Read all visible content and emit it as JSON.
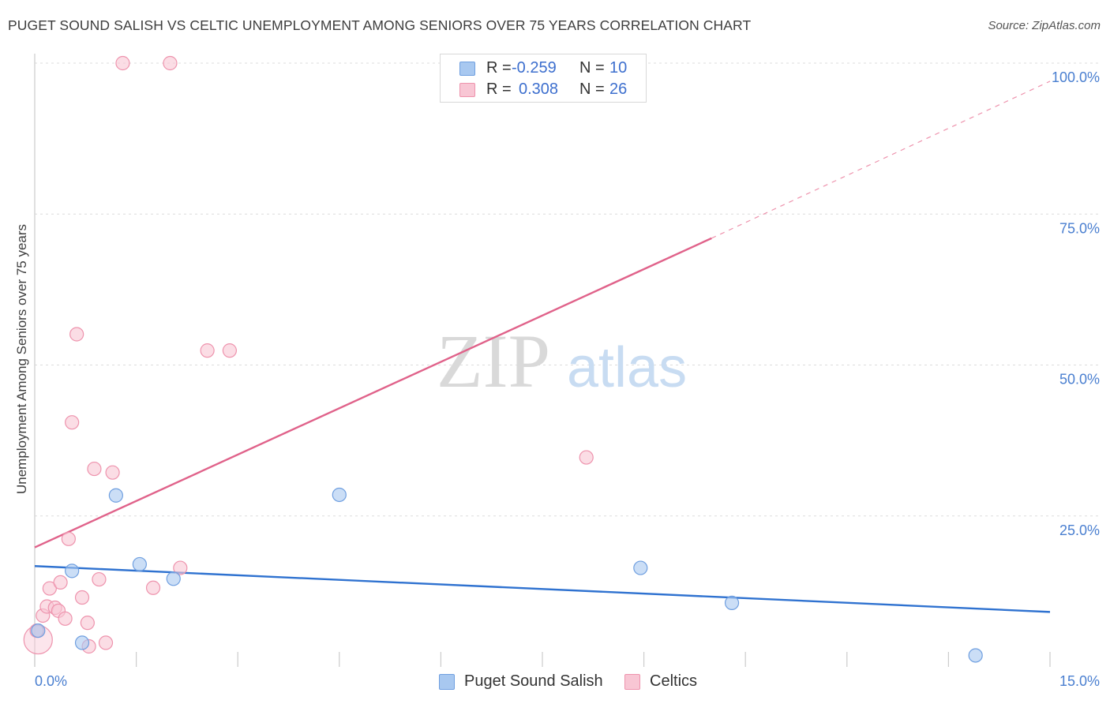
{
  "title": "PUGET SOUND SALISH VS CELTIC UNEMPLOYMENT AMONG SENIORS OVER 75 YEARS CORRELATION CHART",
  "source": "Source: ZipAtlas.com",
  "watermark": {
    "zip": "ZIP",
    "atlas": "atlas"
  },
  "legend": {
    "rows": [
      {
        "r_label": "R =",
        "r_value": "-0.259",
        "n_label": "N =",
        "n_value": "10",
        "color": "#a8c8f0",
        "border": "#6f9fe0"
      },
      {
        "r_label": "R =",
        "r_value": "0.308",
        "n_label": "N =",
        "n_value": "26",
        "color": "#f8c6d4",
        "border": "#ee93ad"
      }
    ]
  },
  "bottom_legend": [
    {
      "label": "Puget Sound Salish",
      "color": "#a8c8f0",
      "border": "#6f9fe0"
    },
    {
      "label": "Celtics",
      "color": "#f8c6d4",
      "border": "#ee93ad"
    }
  ],
  "chart_data": {
    "type": "scatter",
    "title": "PUGET SOUND SALISH VS CELTIC UNEMPLOYMENT AMONG SENIORS OVER 75 YEARS CORRELATION CHART",
    "xlabel": "",
    "ylabel": "Unemployment Among Seniors over 75 years",
    "xlim": [
      0,
      15
    ],
    "ylim": [
      0,
      100
    ],
    "x_tick_labels": {
      "min": "0.0%",
      "max": "15.0%"
    },
    "y_ticks": [
      {
        "value": 25,
        "label": "25.0%"
      },
      {
        "value": 50,
        "label": "50.0%"
      },
      {
        "value": 75,
        "label": "75.0%"
      },
      {
        "value": 100,
        "label": "100.0%"
      }
    ],
    "grid": true,
    "series": [
      {
        "name": "Puget Sound Salish",
        "color": "#a8c8f0",
        "border": "#6f9fe0",
        "line_color": "#2f72d0",
        "points": [
          {
            "x": 0.05,
            "y": 6.0
          },
          {
            "x": 0.55,
            "y": 15.9
          },
          {
            "x": 0.7,
            "y": 4.0
          },
          {
            "x": 1.2,
            "y": 28.4
          },
          {
            "x": 1.55,
            "y": 17.0
          },
          {
            "x": 2.05,
            "y": 14.6
          },
          {
            "x": 4.5,
            "y": 28.5
          },
          {
            "x": 8.95,
            "y": 16.4
          },
          {
            "x": 10.3,
            "y": 10.6
          },
          {
            "x": 13.9,
            "y": 1.9
          }
        ],
        "trend": {
          "x0": 0,
          "y0": 16.7,
          "x1": 15,
          "y1": 9.1
        }
      },
      {
        "name": "Celtics",
        "color": "#f8c6d4",
        "border": "#ee93ad",
        "line_color": "#e0628a",
        "points": [
          {
            "x": 0.05,
            "y": 4.5,
            "big": true
          },
          {
            "x": 0.12,
            "y": 8.5
          },
          {
            "x": 0.18,
            "y": 10.0
          },
          {
            "x": 0.22,
            "y": 13.0
          },
          {
            "x": 0.3,
            "y": 9.8
          },
          {
            "x": 0.35,
            "y": 9.3
          },
          {
            "x": 0.38,
            "y": 14.0
          },
          {
            "x": 0.45,
            "y": 8.0
          },
          {
            "x": 0.5,
            "y": 21.2
          },
          {
            "x": 0.55,
            "y": 40.5
          },
          {
            "x": 0.62,
            "y": 55.1
          },
          {
            "x": 0.7,
            "y": 11.5
          },
          {
            "x": 0.78,
            "y": 7.3
          },
          {
            "x": 0.8,
            "y": 3.4
          },
          {
            "x": 0.88,
            "y": 32.8
          },
          {
            "x": 0.95,
            "y": 14.5
          },
          {
            "x": 1.05,
            "y": 4.0
          },
          {
            "x": 1.15,
            "y": 32.2
          },
          {
            "x": 1.3,
            "y": 100.0
          },
          {
            "x": 1.75,
            "y": 13.1
          },
          {
            "x": 2.0,
            "y": 100.0
          },
          {
            "x": 2.15,
            "y": 16.4
          },
          {
            "x": 2.55,
            "y": 52.4
          },
          {
            "x": 2.88,
            "y": 52.4
          },
          {
            "x": 8.15,
            "y": 34.7
          },
          {
            "x": 0.03,
            "y": 6.0
          }
        ],
        "trend": {
          "x0": 0,
          "y0": 19.8,
          "x1": 10,
          "y1": 71.0,
          "dash_to_x": 15,
          "dash_to_y": 97.0
        }
      }
    ]
  }
}
